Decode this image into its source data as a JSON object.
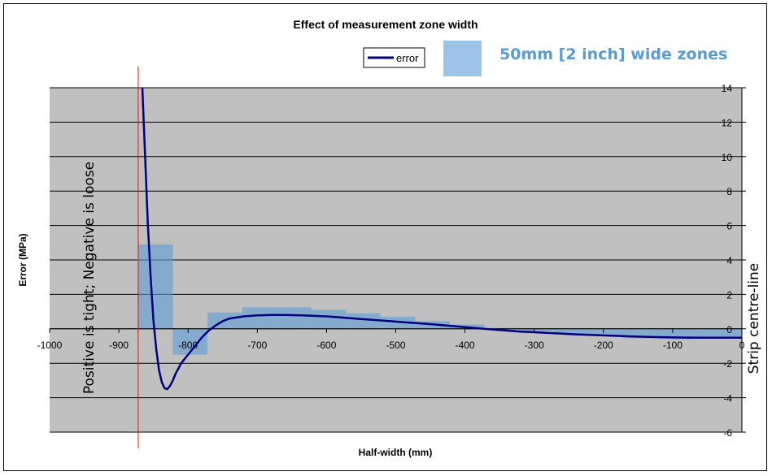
{
  "chart_data": {
    "type": "line",
    "title": "Effect of measurement zone width",
    "xlabel": "Half-width (mm)",
    "ylabel": "Error (MPa)",
    "xlim": [
      -1000,
      0
    ],
    "ylim": [
      -6,
      14
    ],
    "x_ticks": [
      -1000,
      -900,
      -800,
      -700,
      -600,
      -500,
      -400,
      -300,
      -200,
      -100,
      0
    ],
    "y_ticks": [
      -6,
      -4,
      -2,
      0,
      2,
      4,
      6,
      8,
      10,
      12,
      14
    ],
    "grid": "horizontal",
    "legend_position": "top-center",
    "series": [
      {
        "name": "error",
        "color": "#000080",
        "x": [
          -866,
          -862,
          -858,
          -854,
          -850,
          -846,
          -842,
          -838,
          -834,
          -830,
          -826,
          -822,
          -818,
          -814,
          -810,
          -800,
          -790,
          -780,
          -770,
          -760,
          -750,
          -740,
          -720,
          -700,
          -680,
          -660,
          -640,
          -620,
          -600,
          -580,
          -560,
          -540,
          -520,
          -500,
          -480,
          -460,
          -440,
          -420,
          -400,
          -380,
          -360,
          -340,
          -320,
          -300,
          -280,
          -260,
          -240,
          -220,
          -200,
          -180,
          -160,
          -140,
          -120,
          -100,
          -80,
          -60,
          -40,
          -20,
          0
        ],
        "y": [
          14,
          10,
          6,
          3,
          0.5,
          -1.2,
          -2.4,
          -3.1,
          -3.45,
          -3.5,
          -3.3,
          -3.0,
          -2.6,
          -2.3,
          -2.0,
          -1.5,
          -1.0,
          -0.5,
          -0.1,
          0.2,
          0.45,
          0.6,
          0.72,
          0.78,
          0.8,
          0.8,
          0.79,
          0.76,
          0.72,
          0.66,
          0.6,
          0.54,
          0.48,
          0.42,
          0.36,
          0.3,
          0.24,
          0.17,
          0.1,
          0.03,
          -0.04,
          -0.1,
          -0.16,
          -0.2,
          -0.24,
          -0.28,
          -0.32,
          -0.35,
          -0.38,
          -0.41,
          -0.44,
          -0.46,
          -0.48,
          -0.5,
          -0.51,
          -0.52,
          -0.52,
          -0.52,
          -0.52
        ]
      },
      {
        "name": "50mm [2 inch] wide zones",
        "type": "bar",
        "color": "#5b9bd5",
        "zones": [
          {
            "x0": -872,
            "x1": -822,
            "value": 4.9
          },
          {
            "x0": -822,
            "x1": -772,
            "value": -1.5
          },
          {
            "x0": -772,
            "x1": -722,
            "value": 0.95
          },
          {
            "x0": -722,
            "x1": -672,
            "value": 1.25
          },
          {
            "x0": -672,
            "x1": -622,
            "value": 1.25
          },
          {
            "x0": -622,
            "x1": -572,
            "value": 1.1
          },
          {
            "x0": -572,
            "x1": -522,
            "value": 0.9
          },
          {
            "x0": -522,
            "x1": -472,
            "value": 0.7
          },
          {
            "x0": -472,
            "x1": -422,
            "value": 0.45
          },
          {
            "x0": -422,
            "x1": -372,
            "value": 0.25
          },
          {
            "x0": -372,
            "x1": -322,
            "value": 0.05
          },
          {
            "x0": -322,
            "x1": -272,
            "value": -0.15
          },
          {
            "x0": -272,
            "x1": -222,
            "value": -0.3
          },
          {
            "x0": -222,
            "x1": -172,
            "value": -0.4
          },
          {
            "x0": -172,
            "x1": -122,
            "value": -0.55
          },
          {
            "x0": -122,
            "x1": -72,
            "value": -0.6
          },
          {
            "x0": -72,
            "x1": -22,
            "value": -0.55
          },
          {
            "x0": -22,
            "x1": 0,
            "value": -0.5
          }
        ]
      }
    ],
    "annotations": {
      "left_vertical_text": "Positive is tight; Negative is loose",
      "right_vertical_text": "Strip centre-line",
      "edge_line_x": -872,
      "edge_line_color": "#ff0000"
    },
    "colors": {
      "plot_background": "#c0c0c0",
      "gridline": "#000000"
    }
  }
}
